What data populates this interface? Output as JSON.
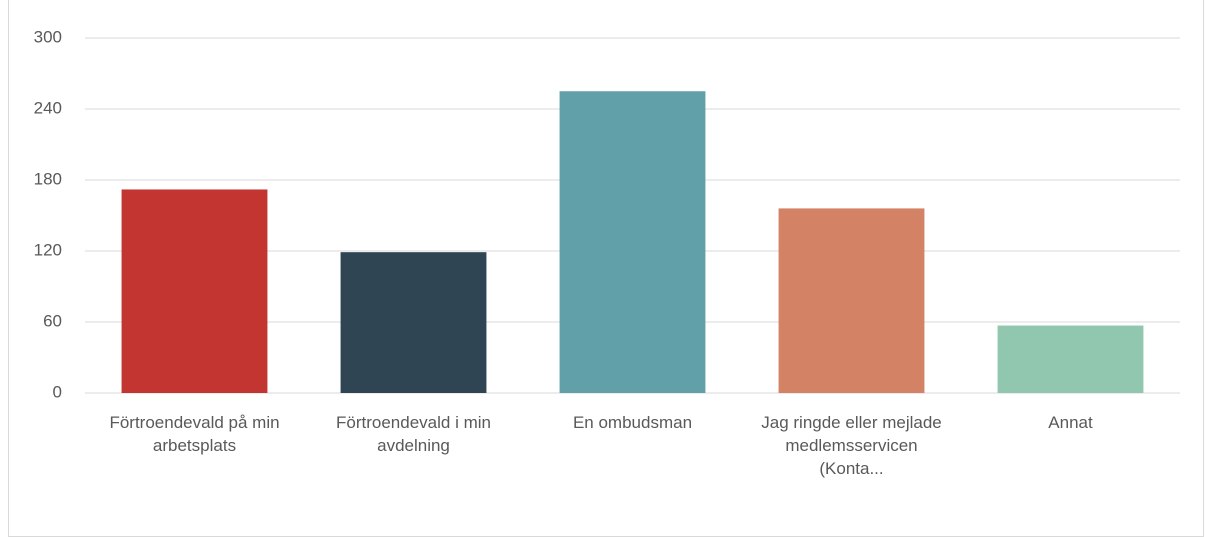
{
  "chart_data": {
    "type": "bar",
    "categories": [
      "Förtroendevald på min arbetsplats",
      "Förtroendevald i min avdelning",
      "En ombudsman",
      "Jag ringde eller mejlade medlemsservicen (Konta...",
      "Annat"
    ],
    "values": [
      172,
      119,
      255,
      156,
      57
    ],
    "colors": [
      "#c23531",
      "#2f4554",
      "#61a0a8",
      "#d48265",
      "#91c7ae"
    ],
    "ylim": [
      0,
      300
    ],
    "yticks": [
      0,
      60,
      120,
      180,
      240,
      300
    ],
    "grid": true
  }
}
